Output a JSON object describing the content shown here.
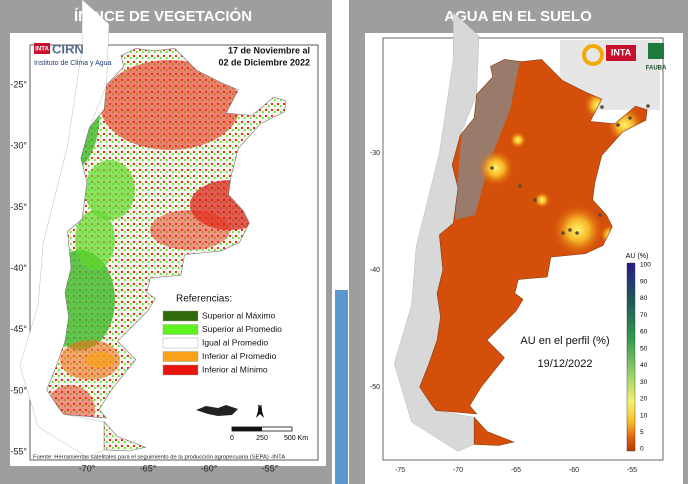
{
  "left_panel": {
    "header": "ÍNDICE DE VEGETACIÓN",
    "logo_inta": "INTA",
    "logo_cirn": "CIRN",
    "institute": "Instituto de Clima y Agua",
    "date_line1": "17 de Noviembre al",
    "date_line2": "02 de Diciembre 2022",
    "legend": {
      "title": "Referencias:",
      "items": [
        {
          "label": "Superior al Máximo",
          "color": "#2f6a0c"
        },
        {
          "label": "Superior al Promedio",
          "color": "#5ef21f"
        },
        {
          "label": "Igual al Promedio",
          "color": "#ffffff"
        },
        {
          "label": "Inferior al Promedio",
          "color": "#f7a21a"
        },
        {
          "label": "Inferior al Mínimo",
          "color": "#e8150f"
        }
      ]
    },
    "lat_ticks": [
      "-25°",
      "-30°",
      "-35°",
      "-40°",
      "-45°",
      "-50°",
      "-55°"
    ],
    "lon_ticks": [
      "-70°",
      "-65°",
      "-60°",
      "-55°"
    ],
    "scale": [
      "0",
      "250",
      "500 Km"
    ],
    "north": "N",
    "source": "Fuente: Herramientas satelitales para el seguimiento de la producción agropecuaria (SEPA) -INTA"
  },
  "right_panel": {
    "header": "AGUA EN EL SUELO",
    "logo_inta": "INTA",
    "logo_fauba": "FAUBA",
    "colorbar": {
      "title": "AU (%)",
      "labels": [
        "100",
        "90",
        "80",
        "70",
        "60",
        "50",
        "40",
        "30",
        "20",
        "10",
        "5",
        "0"
      ]
    },
    "caption": "AU en el perfil (%)",
    "date": "19/12/2022",
    "lat_ticks": [
      "-30",
      "-40",
      "-50"
    ],
    "lon_ticks": [
      "-75",
      "-70",
      "-65",
      "-60",
      "-55"
    ]
  }
}
